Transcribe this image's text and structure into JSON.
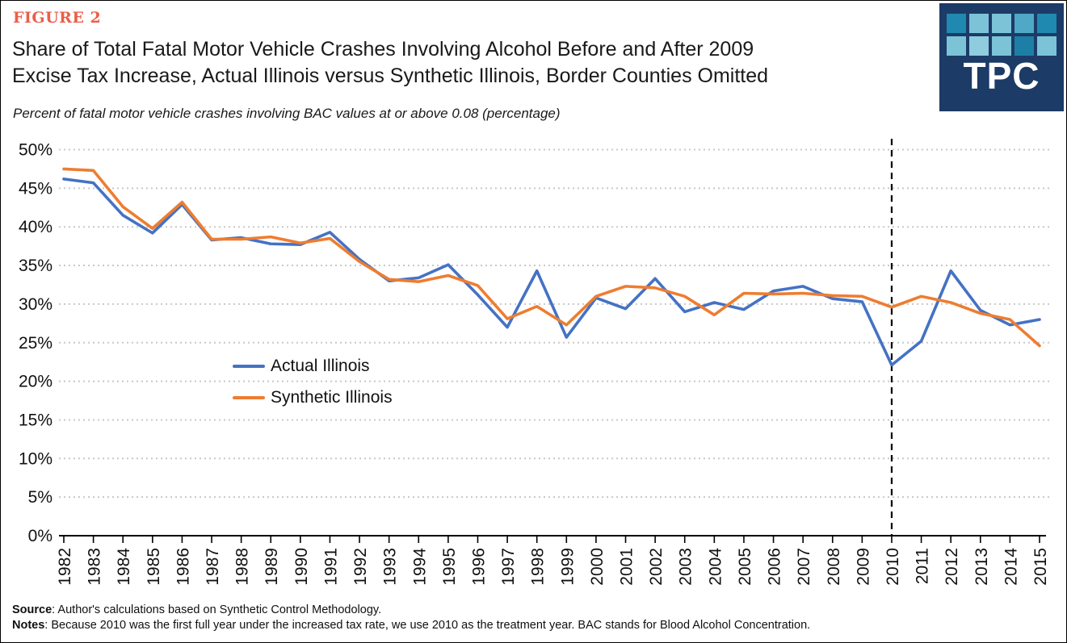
{
  "figure_label": "FIGURE 2",
  "title": {
    "line1": "Share of Total Fatal Motor Vehicle Crashes Involving Alcohol Before and After 2009",
    "line2": "Excise Tax Increase, Actual Illinois versus Synthetic Illinois, Border Counties Omitted"
  },
  "subtitle": "Percent of fatal motor vehicle crashes involving BAC values at or above 0.08 (percentage)",
  "logo": {
    "text": "TPC",
    "background": "#1C3B66",
    "squares": [
      [
        "#2089B0",
        "#7CC3D8",
        "#7CC3D8",
        "#4FA8C6",
        "#2089B0"
      ],
      [
        "#7CC3D8",
        "#8FCCDE",
        "#7CC3D8",
        "#1D7FA6",
        "#7CC3D8"
      ]
    ]
  },
  "legend": [
    {
      "label": "Actual Illinois",
      "color": "#4472C4"
    },
    {
      "label": "Synthetic Illinois",
      "color": "#ED7D31"
    }
  ],
  "footer": {
    "source_label": "Source",
    "source_text": ": Author's calculations based on Synthetic Control Methodology.",
    "notes_label": "Notes",
    "notes_text": ": Because 2010 was the first full year under the increased tax rate, we use 2010 as the treatment year. BAC stands for Blood Alcohol Concentration."
  },
  "chart_data": {
    "type": "line",
    "x": [
      1982,
      1983,
      1984,
      1985,
      1986,
      1987,
      1988,
      1989,
      1990,
      1991,
      1992,
      1993,
      1994,
      1995,
      1996,
      1997,
      1998,
      1999,
      2000,
      2001,
      2002,
      2003,
      2004,
      2005,
      2006,
      2007,
      2008,
      2009,
      2010,
      2011,
      2012,
      2013,
      2014,
      2015
    ],
    "series": [
      {
        "name": "Actual Illinois",
        "color": "#4472C4",
        "values": [
          46.2,
          45.7,
          41.5,
          39.2,
          42.9,
          38.3,
          38.6,
          37.8,
          37.7,
          39.3,
          35.8,
          33.0,
          33.4,
          35.1,
          31.2,
          27.0,
          34.3,
          25.7,
          30.8,
          29.4,
          33.3,
          29.0,
          30.2,
          29.3,
          31.7,
          32.3,
          30.7,
          30.3,
          22.1,
          25.2,
          34.3,
          29.2,
          27.3,
          28.0
        ]
      },
      {
        "name": "Synthetic Illinois",
        "color": "#ED7D31",
        "values": [
          47.5,
          47.3,
          42.6,
          39.8,
          43.2,
          38.4,
          38.4,
          38.7,
          37.9,
          38.5,
          35.5,
          33.2,
          32.9,
          33.7,
          32.4,
          28.1,
          29.7,
          27.3,
          31.0,
          32.3,
          32.1,
          31.0,
          28.6,
          31.4,
          31.3,
          31.4,
          31.1,
          31.0,
          29.6,
          31.0,
          30.2,
          28.8,
          28.0,
          24.6
        ]
      }
    ],
    "ylim": [
      0,
      50
    ],
    "ytick_step": 5,
    "ytick_format": "percent",
    "xlabel": "",
    "ylabel": "",
    "grid": "horizontal-dotted",
    "grid_color": "#C8C8C8",
    "annotation_line": {
      "x": 2010,
      "orientation": "vertical",
      "style": "dashed",
      "color": "#000000"
    },
    "legend_position": "inside-left-middle"
  }
}
